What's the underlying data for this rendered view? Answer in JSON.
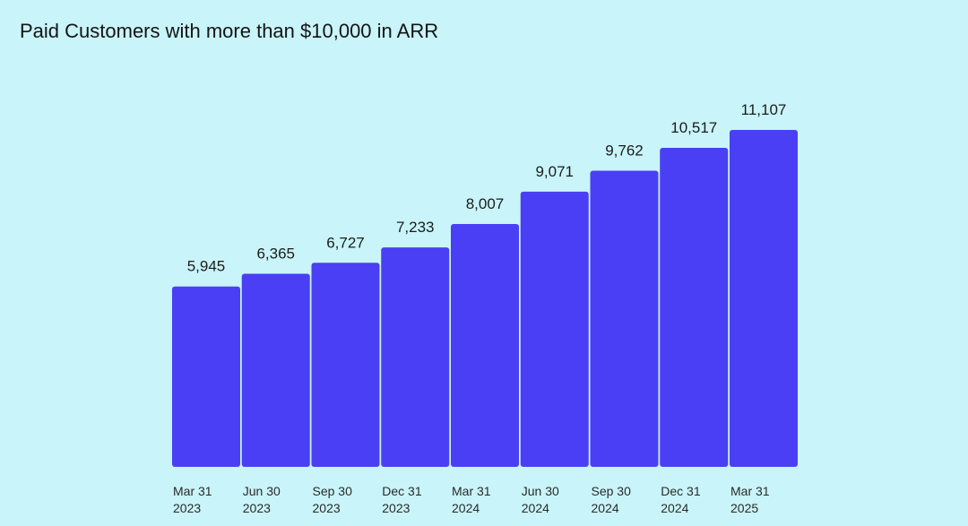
{
  "chart_data": {
    "type": "bar",
    "title": "Paid Customers with more than $10,000 in ARR",
    "categories": [
      [
        "Mar 31",
        "2023"
      ],
      [
        "Jun 30",
        "2023"
      ],
      [
        "Sep 30",
        "2023"
      ],
      [
        "Dec 31",
        "2023"
      ],
      [
        "Mar 31",
        "2024"
      ],
      [
        "Jun 30",
        "2024"
      ],
      [
        "Sep 30",
        "2024"
      ],
      [
        "Dec 31",
        "2024"
      ],
      [
        "Mar 31",
        "2025"
      ]
    ],
    "values": [
      5945,
      6365,
      6727,
      7233,
      8007,
      9071,
      9762,
      10517,
      11107
    ],
    "value_labels": [
      "5,945",
      "6,365",
      "6,727",
      "7,233",
      "8,007",
      "9,071",
      "9,762",
      "10,517",
      "11,107"
    ],
    "xlabel": "",
    "ylabel": "",
    "ylim": [
      0,
      11107
    ],
    "grid": false,
    "colors": {
      "bar": "#4a3ff5",
      "background": "#c9f4f9"
    }
  }
}
